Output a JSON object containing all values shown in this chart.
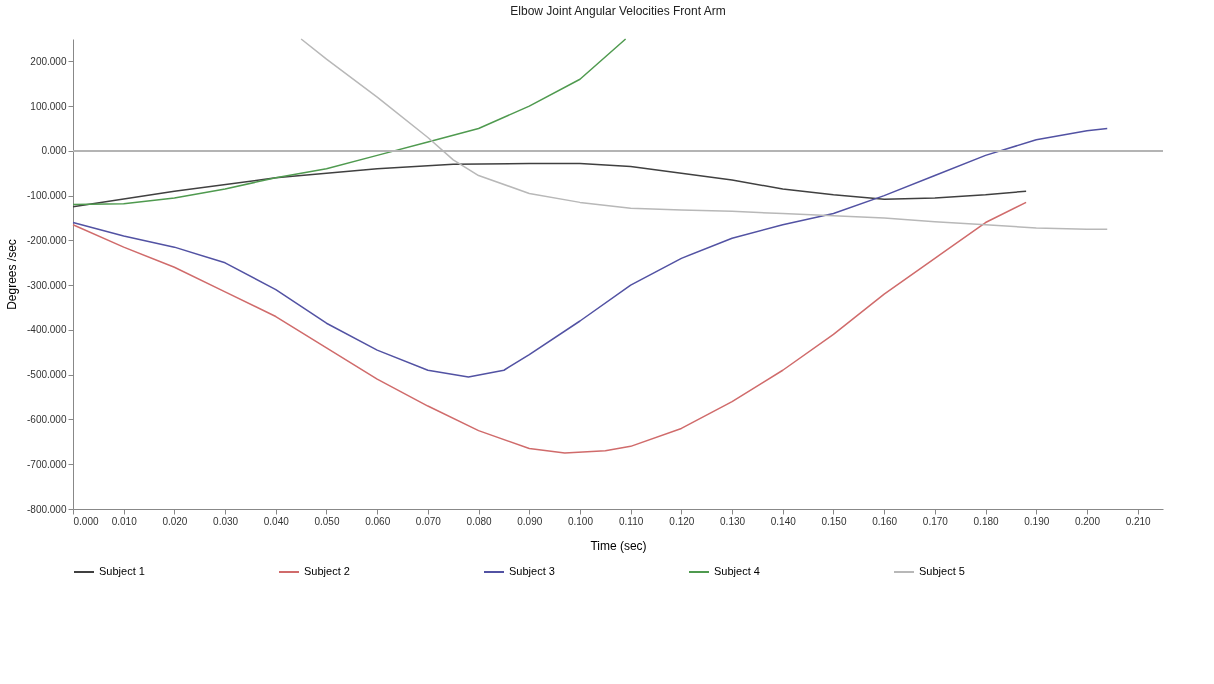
{
  "chart_data": {
    "type": "line",
    "title": "Elbow Joint Angular Velocities Front Arm",
    "xlabel": "Time (sec)",
    "ylabel": "Degrees /sec",
    "xlim": [
      0,
      0.215
    ],
    "xticks": [
      {
        "value": 0,
        "label": "0.000"
      },
      {
        "value": 0.01,
        "label": "0.010"
      },
      {
        "value": 0.02,
        "label": "0.020"
      },
      {
        "value": 0.03,
        "label": "0.030"
      },
      {
        "value": 0.04,
        "label": "0.040"
      },
      {
        "value": 0.05,
        "label": "0.050"
      },
      {
        "value": 0.06,
        "label": "0.060"
      },
      {
        "value": 0.07,
        "label": "0.070"
      },
      {
        "value": 0.08,
        "label": "0.080"
      },
      {
        "value": 0.09,
        "label": "0.090"
      },
      {
        "value": 0.1,
        "label": "0.100"
      },
      {
        "value": 0.11,
        "label": "0.110"
      },
      {
        "value": 0.12,
        "label": "0.120"
      },
      {
        "value": 0.13,
        "label": "0.130"
      },
      {
        "value": 0.14,
        "label": "0.140"
      },
      {
        "value": 0.15,
        "label": "0.150"
      },
      {
        "value": 0.16,
        "label": "0.160"
      },
      {
        "value": 0.17,
        "label": "0.170"
      },
      {
        "value": 0.18,
        "label": "0.180"
      },
      {
        "value": 0.19,
        "label": "0.190"
      },
      {
        "value": 0.2,
        "label": "0.200"
      },
      {
        "value": 0.21,
        "label": "0.210"
      }
    ],
    "ylim": [
      -800,
      250
    ],
    "yticks": [
      {
        "value": -800,
        "label": "-800.000"
      },
      {
        "value": -700,
        "label": "-700.000"
      },
      {
        "value": -600,
        "label": "-600.000"
      },
      {
        "value": -500,
        "label": "-500.000"
      },
      {
        "value": -400,
        "label": "-400.000"
      },
      {
        "value": -300,
        "label": "-300.000"
      },
      {
        "value": -200,
        "label": "-200.000"
      },
      {
        "value": -100,
        "label": "-100.000"
      },
      {
        "value": 0,
        "label": "0.000"
      },
      {
        "value": 100,
        "label": "100.000"
      },
      {
        "value": 200,
        "label": "200.000"
      }
    ],
    "grid": false,
    "legend": "bottom",
    "marker": "none",
    "line_style": "solid",
    "ref_lines": [
      {
        "axis": "y",
        "value": 0,
        "color": "#b4b4b4"
      }
    ],
    "series": [
      {
        "name": "Subject 1",
        "color": "#404040",
        "x": [
          0,
          0.02,
          0.04,
          0.06,
          0.075,
          0.09,
          0.1,
          0.11,
          0.12,
          0.13,
          0.14,
          0.15,
          0.16,
          0.17,
          0.18,
          0.188
        ],
        "values": [
          -125,
          -90,
          -60,
          -40,
          -30,
          -28,
          -28,
          -35,
          -50,
          -65,
          -85,
          -98,
          -108,
          -105,
          -98,
          -90
        ]
      },
      {
        "name": "Subject 2",
        "color": "#d06b6b",
        "x": [
          0,
          0.01,
          0.02,
          0.03,
          0.04,
          0.05,
          0.06,
          0.07,
          0.08,
          0.09,
          0.097,
          0.105,
          0.11,
          0.12,
          0.13,
          0.14,
          0.15,
          0.16,
          0.17,
          0.18,
          0.188
        ],
        "values": [
          -165,
          -215,
          -260,
          -315,
          -370,
          -440,
          -510,
          -570,
          -625,
          -665,
          -675,
          -670,
          -660,
          -620,
          -560,
          -490,
          -410,
          -320,
          -240,
          -160,
          -115
        ]
      },
      {
        "name": "Subject 3",
        "color": "#5252a3",
        "x": [
          0,
          0.01,
          0.02,
          0.03,
          0.04,
          0.05,
          0.06,
          0.07,
          0.078,
          0.085,
          0.09,
          0.1,
          0.11,
          0.12,
          0.13,
          0.14,
          0.15,
          0.16,
          0.17,
          0.18,
          0.19,
          0.2,
          0.204
        ],
        "values": [
          -160,
          -190,
          -215,
          -250,
          -310,
          -385,
          -445,
          -490,
          -505,
          -490,
          -455,
          -380,
          -300,
          -240,
          -195,
          -165,
          -140,
          -100,
          -55,
          -10,
          25,
          45,
          50
        ]
      },
      {
        "name": "Subject 4",
        "color": "#4f9a4f",
        "x": [
          0,
          0.01,
          0.02,
          0.03,
          0.04,
          0.05,
          0.06,
          0.07,
          0.08,
          0.09,
          0.1,
          0.109
        ],
        "values": [
          -120,
          -118,
          -105,
          -85,
          -60,
          -40,
          -10,
          20,
          50,
          100,
          160,
          250
        ]
      },
      {
        "name": "Subject 5",
        "color": "#b8b8b8",
        "x": [
          0.045,
          0.05,
          0.06,
          0.07,
          0.075,
          0.08,
          0.09,
          0.1,
          0.11,
          0.12,
          0.13,
          0.14,
          0.15,
          0.16,
          0.17,
          0.18,
          0.19,
          0.2,
          0.204
        ],
        "values": [
          250,
          205,
          120,
          30,
          -20,
          -55,
          -95,
          -115,
          -128,
          -132,
          -135,
          -140,
          -145,
          -150,
          -158,
          -165,
          -172,
          -175,
          -175
        ]
      }
    ]
  }
}
